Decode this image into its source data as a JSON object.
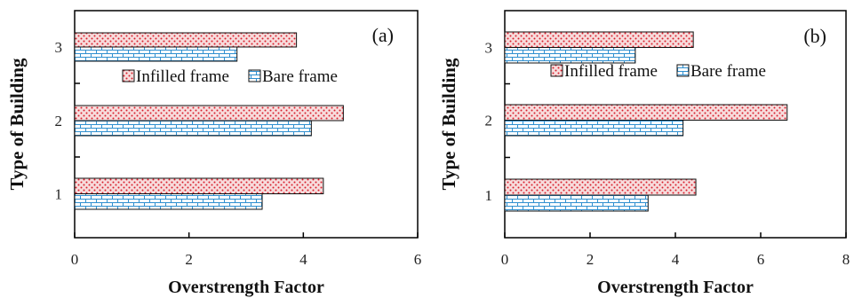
{
  "chart_data": [
    {
      "type": "bar",
      "orientation": "horizontal",
      "panel_label": "(a)",
      "categories": [
        "1",
        "2",
        "3"
      ],
      "series": [
        {
          "name": "Infilled frame",
          "values": [
            4.35,
            4.7,
            3.88
          ]
        },
        {
          "name": "Bare frame",
          "values": [
            3.28,
            4.14,
            2.84
          ]
        }
      ],
      "xlabel": "Overstrength  Factor",
      "ylabel": "Type  of Building",
      "xlim": [
        0,
        6
      ],
      "xticks": [
        "0",
        "2",
        "4",
        "6"
      ],
      "legend_position": "upper-middle",
      "grid": false
    },
    {
      "type": "bar",
      "orientation": "horizontal",
      "panel_label": "(b)",
      "categories": [
        "1",
        "2",
        "3"
      ],
      "series": [
        {
          "name": "Infilled frame",
          "values": [
            4.48,
            6.62,
            4.42
          ]
        },
        {
          "name": "Bare frame",
          "values": [
            3.36,
            4.18,
            3.06
          ]
        }
      ],
      "xlabel": "Overstrength  Factor",
      "ylabel": "Type  of Building",
      "xlim": [
        0,
        8
      ],
      "xticks": [
        "0",
        "2",
        "4",
        "6",
        "8"
      ],
      "legend_position": "upper-middle",
      "grid": false
    }
  ],
  "colors": {
    "infilled_fill": "#f7dcdc",
    "infilled_dot": "#d81e2c",
    "bare_fill": "#ffffff",
    "bare_brick": "#2f8fcf",
    "axis": "#000000"
  }
}
